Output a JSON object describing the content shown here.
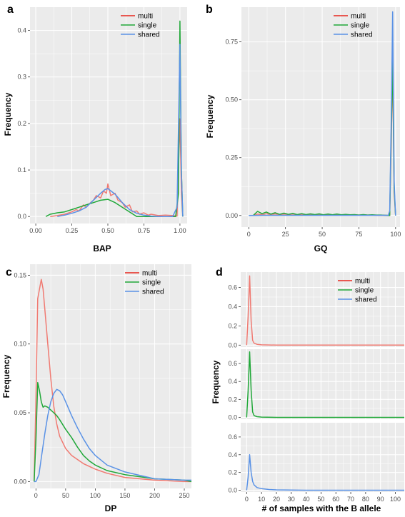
{
  "colors": {
    "multi": "#f07a72",
    "single": "#21a839",
    "shared": "#5a92e6",
    "panel_bg": "#ebebeb",
    "grid": "#ffffff",
    "legend_multi": "#e8261c"
  },
  "chart_data": [
    {
      "id": "a",
      "panel_letter": "a",
      "type": "line",
      "xlabel": "BAP",
      "ylabel": "Frequency",
      "xlim": [
        -0.04,
        1.05
      ],
      "ylim": [
        -0.015,
        0.45
      ],
      "xticks": [
        0,
        0.25,
        0.5,
        0.75,
        1.0
      ],
      "xtick_labels": [
        "0.00",
        "0.25",
        "0.50",
        "0.75",
        "1.00"
      ],
      "yticks": [
        0,
        0.1,
        0.2,
        0.3,
        0.4
      ],
      "ytick_labels": [
        "0.0",
        "0.1",
        "0.2",
        "0.3",
        "0.4"
      ],
      "legend": [
        "multi",
        "single",
        "shared"
      ],
      "legend_position": "top-right",
      "series": [
        {
          "name": "multi",
          "x": [
            0.1,
            0.15,
            0.2,
            0.25,
            0.28,
            0.3,
            0.33,
            0.35,
            0.38,
            0.4,
            0.42,
            0.45,
            0.47,
            0.49,
            0.5,
            0.52,
            0.55,
            0.57,
            0.6,
            0.62,
            0.65,
            0.67,
            0.7,
            0.72,
            0.75,
            0.78,
            0.8,
            0.85,
            0.9,
            0.95,
            0.98,
            1.0,
            1.01,
            1.02
          ],
          "y": [
            0.0,
            0.002,
            0.005,
            0.01,
            0.015,
            0.012,
            0.025,
            0.02,
            0.03,
            0.035,
            0.045,
            0.04,
            0.055,
            0.05,
            0.07,
            0.045,
            0.05,
            0.035,
            0.03,
            0.02,
            0.025,
            0.01,
            0.012,
            0.005,
            0.008,
            0.003,
            0.005,
            0.002,
            0.003,
            0.002,
            0.001,
            0.21,
            0.05,
            0.0
          ]
        },
        {
          "name": "single",
          "x": [
            0.07,
            0.1,
            0.15,
            0.2,
            0.25,
            0.3,
            0.35,
            0.4,
            0.45,
            0.5,
            0.55,
            0.6,
            0.65,
            0.7,
            0.97,
            0.99,
            1.0,
            1.01,
            1.02
          ],
          "y": [
            0.0,
            0.005,
            0.008,
            0.01,
            0.015,
            0.02,
            0.025,
            0.03,
            0.035,
            0.037,
            0.03,
            0.02,
            0.01,
            0.0,
            0.0,
            0.05,
            0.42,
            0.1,
            0.0
          ]
        },
        {
          "name": "shared",
          "x": [
            0.15,
            0.2,
            0.25,
            0.3,
            0.35,
            0.4,
            0.45,
            0.48,
            0.5,
            0.55,
            0.6,
            0.65,
            0.7,
            0.75,
            0.8,
            0.85,
            0.9,
            0.95,
            0.98,
            1.0,
            1.01,
            1.02
          ],
          "y": [
            0.0,
            0.003,
            0.007,
            0.012,
            0.02,
            0.035,
            0.05,
            0.058,
            0.06,
            0.048,
            0.03,
            0.015,
            0.007,
            0.003,
            0.001,
            0.0,
            0.0,
            0.0,
            0.02,
            0.37,
            0.1,
            0.0
          ]
        }
      ]
    },
    {
      "id": "b",
      "panel_letter": "b",
      "type": "line",
      "xlabel": "GQ",
      "ylabel": "Frequency",
      "xlim": [
        -5,
        103
      ],
      "ylim": [
        -0.05,
        0.9
      ],
      "xticks": [
        0,
        25,
        50,
        75,
        100
      ],
      "xtick_labels": [
        "0",
        "25",
        "50",
        "75",
        "100"
      ],
      "yticks": [
        0,
        0.25,
        0.5,
        0.75
      ],
      "ytick_labels": [
        "0.00",
        "0.25",
        "0.50",
        "0.75"
      ],
      "legend": [
        "multi",
        "single",
        "shared"
      ],
      "legend_position": "top-right",
      "series": [
        {
          "name": "multi",
          "x": [
            3,
            6,
            9,
            12,
            15,
            18,
            21,
            24,
            27,
            30,
            33,
            36,
            39,
            42,
            45,
            48,
            51,
            54,
            57,
            60,
            63,
            66,
            69,
            72,
            75,
            78,
            81,
            84,
            87,
            90,
            93,
            96,
            97,
            98,
            99,
            100
          ],
          "y": [
            0.0,
            0.006,
            0.003,
            0.008,
            0.004,
            0.007,
            0.003,
            0.006,
            0.004,
            0.006,
            0.003,
            0.005,
            0.003,
            0.005,
            0.003,
            0.005,
            0.003,
            0.005,
            0.003,
            0.004,
            0.002,
            0.004,
            0.002,
            0.003,
            0.002,
            0.003,
            0.002,
            0.002,
            0.001,
            0.001,
            0.001,
            0.0,
            0.3,
            0.65,
            0.1,
            0.0
          ]
        },
        {
          "name": "single",
          "x": [
            3,
            6,
            9,
            12,
            15,
            18,
            21,
            24,
            27,
            30,
            33,
            36,
            39,
            42,
            45,
            48,
            51,
            54,
            57,
            60,
            63,
            66,
            69,
            72,
            75,
            78,
            81,
            84,
            87,
            90,
            93,
            96,
            97,
            98,
            99,
            100
          ],
          "y": [
            0.0,
            0.018,
            0.008,
            0.015,
            0.006,
            0.012,
            0.005,
            0.01,
            0.005,
            0.009,
            0.004,
            0.008,
            0.004,
            0.007,
            0.004,
            0.007,
            0.003,
            0.006,
            0.003,
            0.006,
            0.003,
            0.005,
            0.003,
            0.004,
            0.002,
            0.004,
            0.002,
            0.003,
            0.002,
            0.002,
            0.001,
            0.0,
            0.35,
            0.68,
            0.12,
            0.0
          ]
        },
        {
          "name": "shared",
          "x": [
            0,
            10,
            20,
            30,
            40,
            50,
            60,
            70,
            80,
            90,
            95,
            96,
            97,
            98,
            99,
            100
          ],
          "y": [
            0.0,
            0.001,
            0.001,
            0.001,
            0.001,
            0.001,
            0.001,
            0.001,
            0.001,
            0.001,
            0.001,
            0.02,
            0.4,
            0.88,
            0.15,
            0.0
          ]
        }
      ]
    },
    {
      "id": "c",
      "panel_letter": "c",
      "type": "line",
      "xlabel": "DP",
      "ylabel": "Frequency",
      "xlim": [
        -10,
        262
      ],
      "ylim": [
        -0.005,
        0.158
      ],
      "xticks": [
        0,
        50,
        100,
        150,
        200,
        250
      ],
      "xtick_labels": [
        "0",
        "50",
        "100",
        "150",
        "200",
        "250"
      ],
      "yticks": [
        0,
        0.05,
        0.1,
        0.15
      ],
      "ytick_labels": [
        "0.00",
        "0.05",
        "0.10",
        "0.15"
      ],
      "legend": [
        "multi",
        "single",
        "shared"
      ],
      "legend_position": "top-right",
      "series": [
        {
          "name": "multi",
          "x": [
            -3,
            0,
            3,
            6,
            9,
            12,
            15,
            20,
            25,
            30,
            35,
            40,
            50,
            60,
            70,
            80,
            100,
            120,
            150,
            200,
            250,
            262
          ],
          "y": [
            0.0,
            0.06,
            0.133,
            0.14,
            0.147,
            0.14,
            0.125,
            0.1,
            0.075,
            0.055,
            0.042,
            0.033,
            0.024,
            0.019,
            0.016,
            0.013,
            0.009,
            0.006,
            0.003,
            0.001,
            0.0,
            0.0
          ]
        },
        {
          "name": "single",
          "x": [
            -3,
            0,
            3,
            6,
            9,
            12,
            15,
            20,
            25,
            30,
            35,
            40,
            50,
            60,
            70,
            80,
            90,
            100,
            120,
            150,
            200,
            250,
            262
          ],
          "y": [
            0.0,
            0.03,
            0.072,
            0.066,
            0.058,
            0.054,
            0.055,
            0.054,
            0.052,
            0.05,
            0.048,
            0.045,
            0.038,
            0.032,
            0.025,
            0.019,
            0.015,
            0.012,
            0.008,
            0.005,
            0.002,
            0.001,
            0.0
          ]
        },
        {
          "name": "shared",
          "x": [
            -3,
            0,
            5,
            10,
            15,
            20,
            25,
            30,
            35,
            40,
            45,
            50,
            60,
            70,
            80,
            90,
            100,
            120,
            150,
            200,
            250,
            262
          ],
          "y": [
            0.0,
            0.0,
            0.005,
            0.02,
            0.035,
            0.048,
            0.058,
            0.064,
            0.067,
            0.066,
            0.063,
            0.058,
            0.048,
            0.039,
            0.031,
            0.024,
            0.019,
            0.012,
            0.007,
            0.002,
            0.001,
            0.001
          ]
        }
      ]
    },
    {
      "id": "d",
      "panel_letter": "d",
      "type": "line",
      "faceted": true,
      "xlabel": "# of samples with the B allele",
      "ylabel": "Frequency",
      "xlim": [
        -4,
        106
      ],
      "ylim": [
        -0.02,
        0.76
      ],
      "xticks": [
        0,
        10,
        20,
        30,
        40,
        50,
        60,
        70,
        80,
        90,
        100
      ],
      "xtick_labels": [
        "0",
        "10",
        "20",
        "30",
        "40",
        "50",
        "60",
        "70",
        "80",
        "90",
        "100"
      ],
      "yticks": [
        0,
        0.2,
        0.4,
        0.6
      ],
      "ytick_labels": [
        "0.0",
        "0.2",
        "0.4",
        "0.6"
      ],
      "legend": [
        "multi",
        "single",
        "shared"
      ],
      "legend_position": "top-right",
      "facets": [
        {
          "name": "multi",
          "x": [
            0,
            1,
            2,
            3,
            4,
            5,
            7,
            10,
            20,
            40,
            70,
            106
          ],
          "y": [
            0.0,
            0.3,
            0.72,
            0.25,
            0.05,
            0.02,
            0.008,
            0.003,
            0.0,
            0.0,
            0.0,
            0.0
          ]
        },
        {
          "name": "single",
          "x": [
            0,
            1,
            2,
            3,
            4,
            5,
            7,
            10,
            20,
            40,
            70,
            106
          ],
          "y": [
            0.0,
            0.3,
            0.73,
            0.3,
            0.06,
            0.02,
            0.008,
            0.003,
            0.0,
            0.0,
            0.0,
            0.0
          ]
        },
        {
          "name": "shared",
          "x": [
            0,
            1,
            2,
            3,
            4,
            5,
            7,
            10,
            15,
            20,
            40,
            70,
            106
          ],
          "y": [
            0.0,
            0.15,
            0.4,
            0.2,
            0.1,
            0.06,
            0.03,
            0.018,
            0.008,
            0.004,
            0.0,
            0.0,
            0.0
          ]
        }
      ]
    }
  ]
}
